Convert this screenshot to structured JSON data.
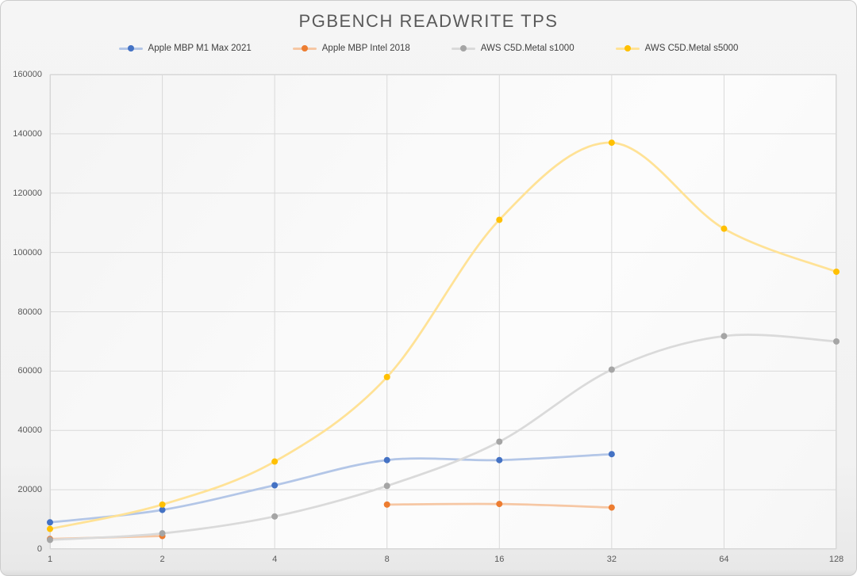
{
  "chart": {
    "title": "PGBENCH READWRITE TPS"
  },
  "chart_data": {
    "type": "line",
    "title": "PGBENCH READWRITE TPS",
    "xlabel": "",
    "ylabel": "",
    "categories": [
      "1",
      "2",
      "4",
      "8",
      "16",
      "32",
      "64",
      "128"
    ],
    "ylim": [
      0,
      160000
    ],
    "ytick_step": 20000,
    "yticks": [
      "0",
      "20000",
      "40000",
      "60000",
      "80000",
      "100000",
      "120000",
      "140000",
      "160000"
    ],
    "grid": true,
    "smooth_lines": true,
    "legend_position": "top",
    "axis_label_color": "#595959",
    "gridline_color": "#d9d9d9",
    "series": [
      {
        "name": "Apple MBP M1 Max 2021",
        "color": "#4472C4",
        "line_color": "#b3c6e7",
        "values": [
          9000,
          13200,
          21500,
          30000,
          30000,
          32000,
          null,
          null
        ]
      },
      {
        "name": "Apple MBP Intel 2018",
        "color": "#ED7D31",
        "line_color": "#f6c7a4",
        "values": [
          3400,
          4400,
          null,
          15000,
          15200,
          14000,
          null,
          null
        ]
      },
      {
        "name": "AWS C5D.Metal s1000",
        "color": "#A5A5A5",
        "line_color": "#dadada",
        "values": [
          3100,
          5300,
          11000,
          21300,
          36200,
          60500,
          71800,
          70000
        ]
      },
      {
        "name": "AWS C5D.Metal s5000",
        "color": "#FFC000",
        "line_color": "#ffe296",
        "values": [
          6800,
          15000,
          29500,
          58000,
          111000,
          137000,
          108000,
          93500
        ]
      }
    ]
  }
}
